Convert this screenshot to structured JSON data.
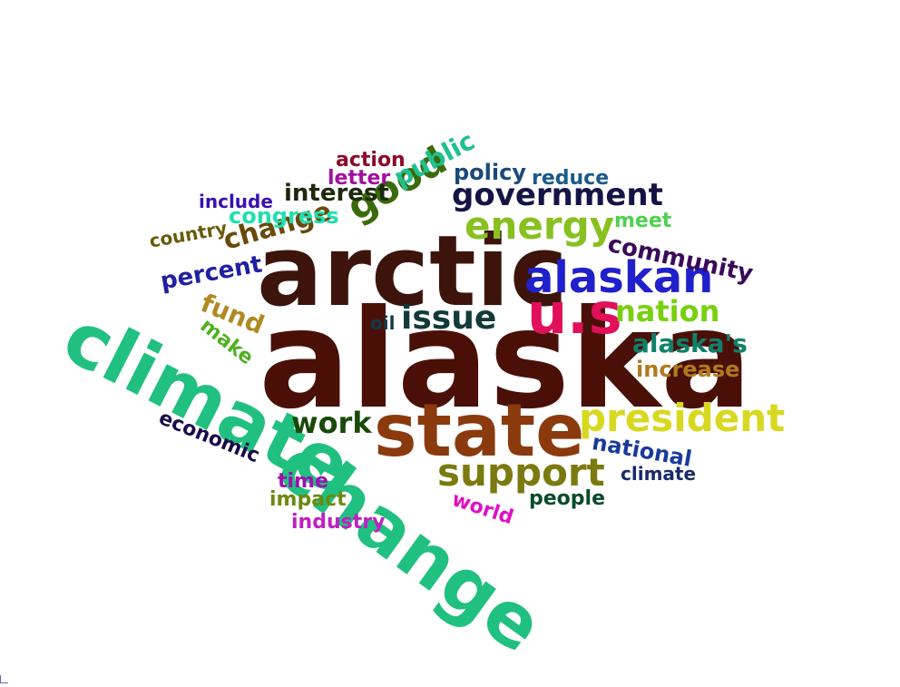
{
  "words": [
    {
      "text": "alaska",
      "color": "#4a1008",
      "weight": 100
    },
    {
      "text": "arctic",
      "color": "#3d140c",
      "weight": 78
    },
    {
      "text": "climate",
      "color": "#20c080",
      "weight": 64
    },
    {
      "text": "change",
      "color": "#20c080",
      "weight": 64
    },
    {
      "text": "state",
      "color": "#8b3a0e",
      "weight": 56
    },
    {
      "text": "u.s",
      "color": "#e0105a",
      "weight": 45
    },
    {
      "text": "alaskan",
      "color": "#2020cc",
      "weight": 36
    },
    {
      "text": "support",
      "color": "#7a7a10",
      "weight": 33
    },
    {
      "text": "president",
      "color": "#d8d820",
      "weight": 31
    },
    {
      "text": "energy",
      "color": "#88c020",
      "weight": 30
    },
    {
      "text": "good",
      "color": "#3a6a0a",
      "weight": 30
    },
    {
      "text": "issue",
      "color": "#123a3a",
      "weight": 27
    },
    {
      "text": "government",
      "color": "#141444",
      "weight": 25
    },
    {
      "text": "nation",
      "color": "#78d010",
      "weight": 25
    },
    {
      "text": "work",
      "color": "#1a4a0a",
      "weight": 24
    },
    {
      "text": "change",
      "color": "#6a4a0a",
      "weight": 22
    },
    {
      "text": "alaska's",
      "color": "#10806a",
      "weight": 22
    },
    {
      "text": "public",
      "color": "#20c090",
      "weight": 21
    },
    {
      "text": "fund",
      "color": "#b08a20",
      "weight": 21
    },
    {
      "text": "community",
      "color": "#3a0a5a",
      "weight": 20
    },
    {
      "text": "interest",
      "color": "#1a2a0a",
      "weight": 20
    },
    {
      "text": "percent",
      "color": "#2020a0",
      "weight": 20
    },
    {
      "text": "national",
      "color": "#1a3a9a",
      "weight": 20
    },
    {
      "text": "increase",
      "color": "#b07a20",
      "weight": 19
    },
    {
      "text": "congress",
      "color": "#20e0b0",
      "weight": 19
    },
    {
      "text": "policy",
      "color": "#1a4a7a",
      "weight": 19
    },
    {
      "text": "make",
      "color": "#50b020",
      "weight": 18
    },
    {
      "text": "action",
      "color": "#8a0a2a",
      "weight": 18
    },
    {
      "text": "letter",
      "color": "#a010a0",
      "weight": 18
    },
    {
      "text": "reduce",
      "color": "#1a5a8a",
      "weight": 18
    },
    {
      "text": "economic",
      "color": "#1a0a4a",
      "weight": 18
    },
    {
      "text": "meet",
      "color": "#50d050",
      "weight": 18
    },
    {
      "text": "people",
      "color": "#0a4a2a",
      "weight": 18
    },
    {
      "text": "time",
      "color": "#a010b0",
      "weight": 17
    },
    {
      "text": "impact",
      "color": "#6a8a10",
      "weight": 17
    },
    {
      "text": "industry",
      "color": "#c020c0",
      "weight": 17
    },
    {
      "text": "world",
      "color": "#e010c0",
      "weight": 17
    },
    {
      "text": "country",
      "color": "#6a5a0a",
      "weight": 16
    },
    {
      "text": "include",
      "color": "#3a10b0",
      "weight": 16
    },
    {
      "text": "oil",
      "color": "#123a4a",
      "weight": 16
    },
    {
      "text": "climate",
      "color": "#1a2a6a",
      "weight": 16
    }
  ]
}
